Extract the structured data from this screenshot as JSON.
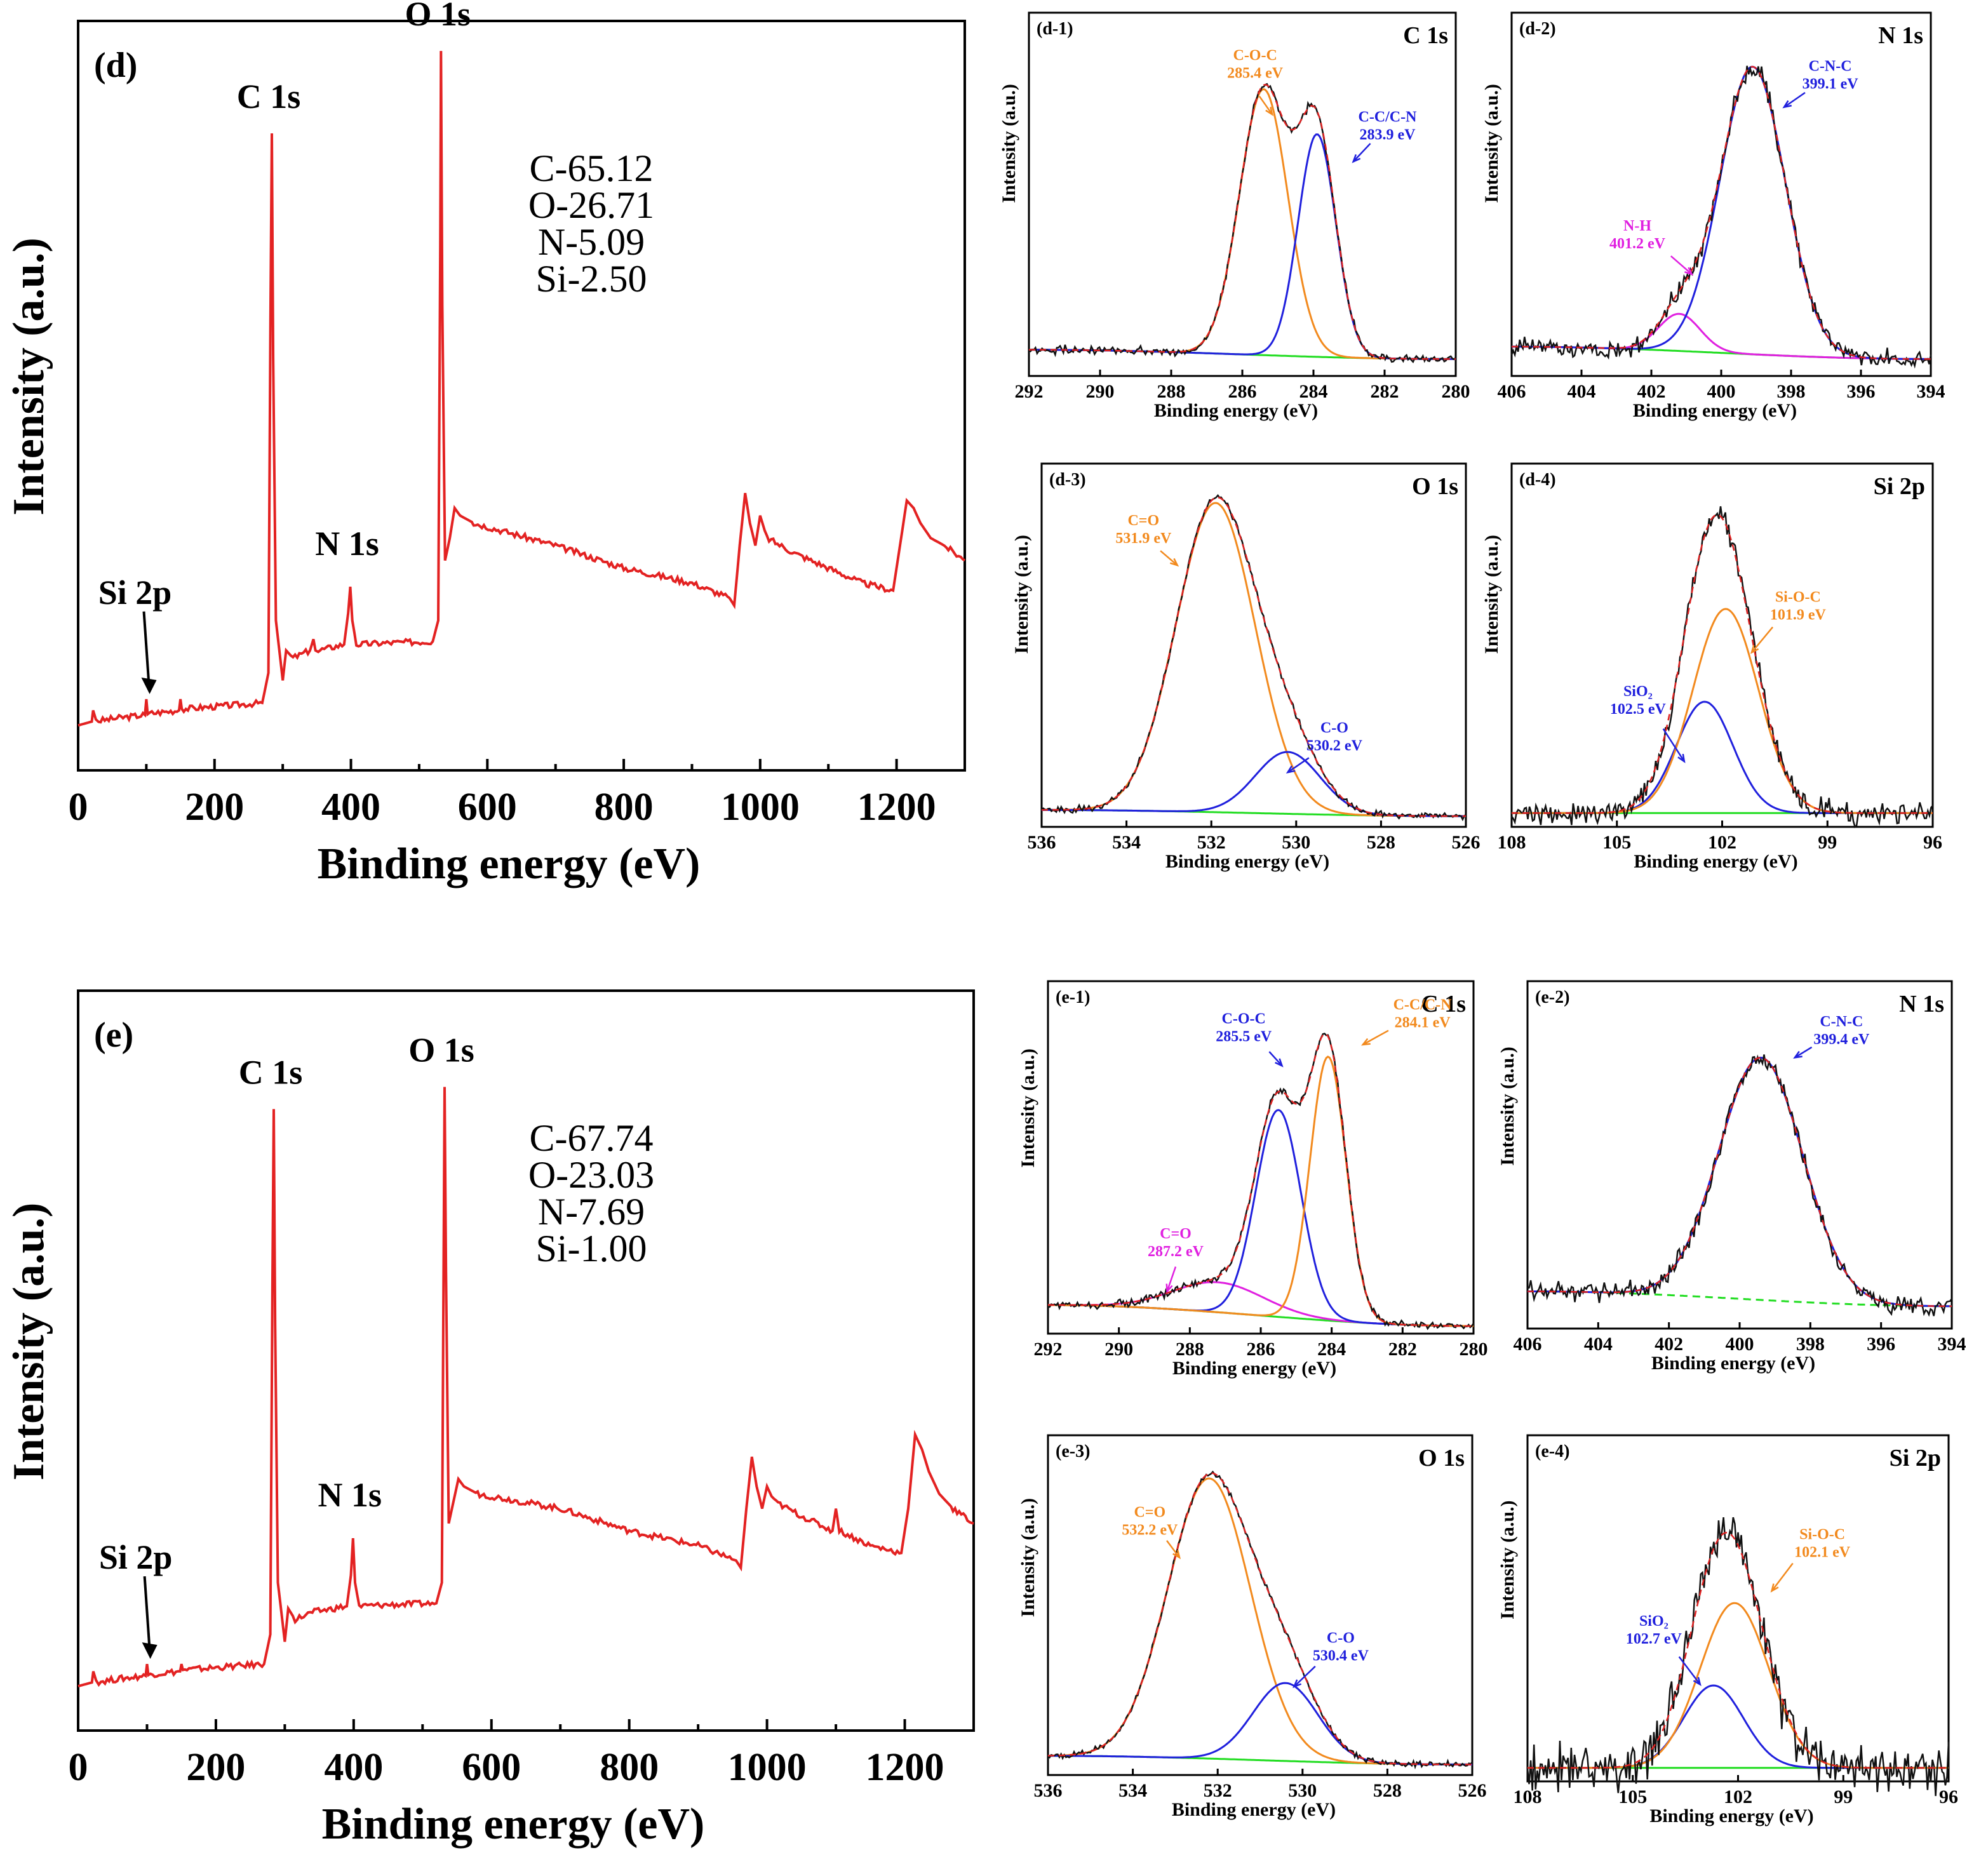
{
  "chart_data": [
    {
      "id": "d-survey",
      "type": "line",
      "panel_label": "(d)",
      "xlabel": "Binding energy (eV)",
      "ylabel": "Intensity (a.u.)",
      "xlim": [
        0,
        1300
      ],
      "xticks": [
        0,
        200,
        400,
        600,
        800,
        1000,
        1200
      ],
      "ylim": [
        0,
        1.0
      ],
      "line_color": "#e32222",
      "peak_labels": [
        {
          "text": "O 1s",
          "x": 532
        },
        {
          "text": "C 1s",
          "x": 284
        },
        {
          "text": "N 1s",
          "x": 399
        },
        {
          "text": "Si 2p",
          "x": 102,
          "arrow": true
        }
      ],
      "composition": [
        "C-65.12",
        "O-26.71",
        "N-5.09",
        "Si-2.50"
      ],
      "series": [
        {
          "name": "survey",
          "x": [
            0,
            20,
            22,
            26,
            30,
            60,
            98,
            100,
            102,
            105,
            148,
            150,
            152,
            155,
            270,
            279,
            282,
            284,
            286,
            290,
            300,
            305,
            315,
            340,
            345,
            348,
            352,
            390,
            396,
            399,
            402,
            408,
            450,
            520,
            528,
            531,
            532,
            534,
            538,
            545,
            552,
            560,
            580,
            700,
            800,
            900,
            955,
            962,
            970,
            978,
            985,
            993,
            1000,
            1010,
            1050,
            1150,
            1195,
            1205,
            1215,
            1225,
            1235,
            1250,
            1270,
            1300
          ],
          "y": [
            0.06,
            0.065,
            0.08,
            0.068,
            0.066,
            0.07,
            0.074,
            0.095,
            0.075,
            0.076,
            0.08,
            0.095,
            0.082,
            0.082,
            0.09,
            0.13,
            0.6,
            0.85,
            0.55,
            0.2,
            0.12,
            0.16,
            0.15,
            0.16,
            0.175,
            0.16,
            0.16,
            0.168,
            0.21,
            0.245,
            0.2,
            0.168,
            0.17,
            0.172,
            0.2,
            0.7,
            0.96,
            0.62,
            0.28,
            0.31,
            0.35,
            0.34,
            0.33,
            0.3,
            0.27,
            0.25,
            0.23,
            0.22,
            0.3,
            0.37,
            0.33,
            0.3,
            0.34,
            0.31,
            0.29,
            0.25,
            0.24,
            0.3,
            0.36,
            0.35,
            0.33,
            0.31,
            0.3,
            0.28
          ]
        }
      ]
    },
    {
      "id": "e-survey",
      "type": "line",
      "panel_label": "(e)",
      "xlabel": "Binding energy (eV)",
      "ylabel": "Intensity (a.u.)",
      "xlim": [
        0,
        1300
      ],
      "xticks": [
        0,
        200,
        400,
        600,
        800,
        1000,
        1200
      ],
      "ylim": [
        0,
        1.0
      ],
      "line_color": "#e32222",
      "peak_labels": [
        {
          "text": "O 1s",
          "x": 532
        },
        {
          "text": "C 1s",
          "x": 284
        },
        {
          "text": "N 1s",
          "x": 399
        },
        {
          "text": "Si 2p",
          "x": 102,
          "arrow": true
        }
      ],
      "composition": [
        "C-67.74",
        "O-23.03",
        "N-7.69",
        "Si-1.00"
      ],
      "series": [
        {
          "name": "survey",
          "x": [
            0,
            20,
            22,
            26,
            30,
            60,
            98,
            100,
            102,
            105,
            148,
            150,
            152,
            155,
            270,
            279,
            282,
            284,
            286,
            290,
            300,
            305,
            315,
            340,
            390,
            396,
            399,
            402,
            408,
            450,
            520,
            528,
            531,
            532,
            534,
            538,
            545,
            552,
            560,
            580,
            700,
            800,
            900,
            955,
            962,
            970,
            978,
            985,
            993,
            1000,
            1010,
            1050,
            1095,
            1100,
            1105,
            1150,
            1195,
            1205,
            1215,
            1225,
            1235,
            1250,
            1270,
            1300
          ],
          "y": [
            0.06,
            0.065,
            0.08,
            0.068,
            0.066,
            0.07,
            0.074,
            0.09,
            0.075,
            0.076,
            0.08,
            0.09,
            0.082,
            0.082,
            0.09,
            0.13,
            0.6,
            0.84,
            0.55,
            0.2,
            0.12,
            0.165,
            0.15,
            0.16,
            0.168,
            0.21,
            0.26,
            0.2,
            0.168,
            0.17,
            0.172,
            0.2,
            0.7,
            0.87,
            0.62,
            0.28,
            0.31,
            0.34,
            0.33,
            0.32,
            0.3,
            0.27,
            0.25,
            0.23,
            0.22,
            0.3,
            0.37,
            0.33,
            0.3,
            0.33,
            0.31,
            0.29,
            0.27,
            0.3,
            0.27,
            0.25,
            0.24,
            0.3,
            0.4,
            0.38,
            0.35,
            0.32,
            0.3,
            0.28
          ]
        }
      ]
    },
    {
      "id": "d-1",
      "type": "line",
      "panel_label": "(d-1)",
      "core_level": "C 1s",
      "xlabel": "Binding energy (eV)",
      "ylabel": "Intensity (a.u.)",
      "xlim": [
        292,
        280
      ],
      "xticks": [
        292,
        290,
        288,
        286,
        284,
        282,
        280
      ],
      "ylim": [
        0,
        1.15
      ],
      "background": {
        "left": 0.06,
        "right": 0.03
      },
      "components": [
        {
          "label": "C-O-C",
          "energy_label": "285.4 eV",
          "center": 285.4,
          "height": 0.86,
          "fwhm": 1.6,
          "color": "#f28a1e"
        },
        {
          "label": "C-C/C-N",
          "energy_label": "283.9 eV",
          "center": 283.9,
          "height": 0.72,
          "fwhm": 1.25,
          "color": "#2020dd"
        }
      ],
      "noise": 0.01
    },
    {
      "id": "d-2",
      "type": "line",
      "panel_label": "(d-2)",
      "core_level": "N 1s",
      "xlabel": "Binding energy (eV)",
      "ylabel": "Intensity (a.u.)",
      "xlim": [
        406,
        394
      ],
      "xticks": [
        406,
        404,
        402,
        400,
        398,
        396,
        394
      ],
      "ylim": [
        0,
        1.15
      ],
      "background": {
        "left": 0.07,
        "right": 0.03
      },
      "components": [
        {
          "label": "N-H",
          "energy_label": "401.2 eV",
          "center": 401.2,
          "height": 0.12,
          "fwhm": 1.4,
          "color": "#e020e0"
        },
        {
          "label": "C-N-C",
          "energy_label": "399.1 eV",
          "center": 399.1,
          "height": 0.93,
          "fwhm": 2.2,
          "color": "#2020dd"
        }
      ],
      "noise": 0.025
    },
    {
      "id": "d-3",
      "type": "line",
      "panel_label": "(d-3)",
      "core_level": "O 1s",
      "xlabel": "Binding energy (eV)",
      "ylabel": "Intensity (a.u.)",
      "xlim": [
        536,
        526
      ],
      "xticks": [
        536,
        534,
        532,
        530,
        528,
        526
      ],
      "ylim": [
        0,
        1.15
      ],
      "background": {
        "left": 0.03,
        "right": 0.01
      },
      "components": [
        {
          "label": "C=O",
          "energy_label": "531.9 eV",
          "center": 531.9,
          "height": 1.0,
          "fwhm": 2.2,
          "color": "#f28a1e"
        },
        {
          "label": "C-O",
          "energy_label": "530.2 eV",
          "center": 530.2,
          "height": 0.2,
          "fwhm": 1.8,
          "color": "#2020dd"
        }
      ],
      "noise": 0.008
    },
    {
      "id": "d-4",
      "type": "line",
      "panel_label": "(d-4)",
      "core_level": "Si 2p",
      "xlabel": "Binding energy (eV)",
      "ylabel": "Intensity (a.u.)",
      "xlim": [
        108,
        96
      ],
      "xticks": [
        108,
        105,
        102,
        99,
        96
      ],
      "ylim": [
        0,
        1.15
      ],
      "background": {
        "left": 0.02,
        "right": 0.02
      },
      "components": [
        {
          "label": "SiO₂",
          "energy_label": "102.5 eV",
          "center": 102.5,
          "height": 0.36,
          "fwhm": 1.9,
          "color": "#2020dd"
        },
        {
          "label": "Si-O-C",
          "energy_label": "101.9 eV",
          "center": 101.9,
          "height": 0.66,
          "fwhm": 2.2,
          "color": "#f28a1e"
        }
      ],
      "noise": 0.03
    },
    {
      "id": "e-1",
      "type": "line",
      "panel_label": "(e-1)",
      "core_level": "C 1s",
      "xlabel": "Binding energy (eV)",
      "ylabel": "Intensity (a.u.)",
      "xlim": [
        292,
        280
      ],
      "xticks": [
        292,
        290,
        288,
        286,
        284,
        282,
        280
      ],
      "ylim": [
        0,
        1.15
      ],
      "background": {
        "left": 0.07,
        "right": 0.0
      },
      "components": [
        {
          "label": "C=O",
          "energy_label": "287.2 eV",
          "center": 287.2,
          "height": 0.1,
          "fwhm": 3.0,
          "color": "#e020e0"
        },
        {
          "label": "C-O-C",
          "energy_label": "285.5 eV",
          "center": 285.5,
          "height": 0.69,
          "fwhm": 1.5,
          "color": "#2020dd"
        },
        {
          "label": "C-C/C-N",
          "energy_label": "284.1 eV",
          "center": 284.1,
          "height": 0.88,
          "fwhm": 1.2,
          "color": "#f28a1e"
        }
      ],
      "noise": 0.01
    },
    {
      "id": "e-2",
      "type": "line",
      "panel_label": "(e-2)",
      "core_level": "N 1s",
      "xlabel": "Binding energy (eV)",
      "ylabel": "Intensity (a.u.)",
      "xlim": [
        406,
        394
      ],
      "xticks": [
        406,
        404,
        402,
        400,
        398,
        396,
        394
      ],
      "ylim": [
        0,
        1.15
      ],
      "background": {
        "left": 0.1,
        "right": 0.05,
        "dashed": true
      },
      "components": [
        {
          "label": "C-N-C",
          "energy_label": "399.4 eV",
          "center": 399.4,
          "height": 0.82,
          "fwhm": 2.8,
          "color": "#2020dd"
        }
      ],
      "noise": 0.025
    },
    {
      "id": "e-3",
      "type": "line",
      "panel_label": "(e-3)",
      "core_level": "O 1s",
      "xlabel": "Binding energy (eV)",
      "ylabel": "Intensity (a.u.)",
      "xlim": [
        536,
        526
      ],
      "xticks": [
        536,
        534,
        532,
        530,
        528,
        526
      ],
      "ylim": [
        0,
        1.15
      ],
      "background": {
        "left": 0.04,
        "right": 0.01
      },
      "components": [
        {
          "label": "C=O",
          "energy_label": "532.2 eV",
          "center": 532.2,
          "height": 0.97,
          "fwhm": 2.3,
          "color": "#f28a1e"
        },
        {
          "label": "C-O",
          "energy_label": "530.4 eV",
          "center": 530.4,
          "height": 0.27,
          "fwhm": 1.8,
          "color": "#2020dd"
        }
      ],
      "noise": 0.008
    },
    {
      "id": "e-4",
      "type": "line",
      "panel_label": "(e-4)",
      "core_level": "Si 2p",
      "xlabel": "Binding energy (eV)",
      "ylabel": "Intensity (a.u.)",
      "xlim": [
        108,
        96
      ],
      "xticks": [
        108,
        105,
        102,
        99,
        96
      ],
      "ylim": [
        0,
        1.15
      ],
      "background": {
        "left": 0.02,
        "right": 0.02
      },
      "components": [
        {
          "label": "SiO₂",
          "energy_label": "102.7 eV",
          "center": 102.7,
          "height": 0.28,
          "fwhm": 2.0,
          "color": "#2020dd"
        },
        {
          "label": "Si-O-C",
          "energy_label": "102.1 eV",
          "center": 102.1,
          "height": 0.56,
          "fwhm": 2.3,
          "color": "#f28a1e"
        }
      ],
      "noise": 0.07
    }
  ]
}
